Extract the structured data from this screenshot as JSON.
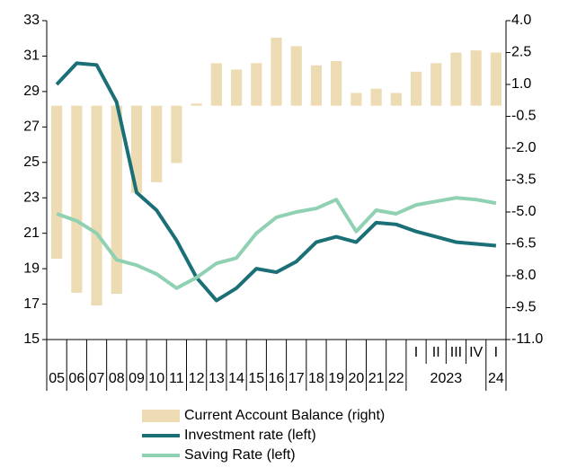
{
  "chart_data": {
    "type": "bar_line_combo",
    "categories": [
      "05",
      "06",
      "07",
      "08",
      "09",
      "10",
      "11",
      "12",
      "13",
      "14",
      "15",
      "16",
      "17",
      "18",
      "19",
      "20",
      "21",
      "22",
      "I",
      "II",
      "III",
      "IV",
      "I"
    ],
    "groups": [
      {
        "label": "2023",
        "start": 18,
        "end": 21
      },
      {
        "label": "24",
        "start": 22,
        "end": 22
      }
    ],
    "series": [
      {
        "name": "Current Account Balance (right)",
        "kind": "bar",
        "axis": "y2",
        "color": "#eddcb3",
        "values": [
          -7.2,
          -8.8,
          -9.4,
          -8.85,
          -4.1,
          -3.6,
          -2.7,
          0.1,
          2.0,
          1.7,
          2.0,
          3.2,
          2.8,
          1.9,
          2.1,
          0.6,
          0.8,
          0.6,
          1.6,
          2.0,
          2.5,
          2.6,
          2.5
        ]
      },
      {
        "name": "Investment rate (left)",
        "kind": "line",
        "color": "#1b6f77",
        "values": [
          29.4,
          30.6,
          30.5,
          28.4,
          23.3,
          22.3,
          20.6,
          18.5,
          17.2,
          17.9,
          19.0,
          18.8,
          19.4,
          20.5,
          20.8,
          20.5,
          21.6,
          21.5,
          21.1,
          20.8,
          20.5,
          20.4,
          20.3
        ]
      },
      {
        "name": "Saving Rate (left)",
        "kind": "line",
        "color": "#8fd1b2",
        "values": [
          22.1,
          21.7,
          21.0,
          19.5,
          19.2,
          18.7,
          17.9,
          18.5,
          19.3,
          19.6,
          21.0,
          21.9,
          22.2,
          22.4,
          22.9,
          21.1,
          22.3,
          22.1,
          22.6,
          22.8,
          23.0,
          22.9,
          22.7
        ]
      }
    ],
    "ylim": [
      15,
      33
    ],
    "yticks": [
      15,
      17,
      19,
      21,
      23,
      25,
      27,
      29,
      31,
      33
    ],
    "y2lim": [
      -11,
      4
    ],
    "y2ticks": [
      {
        "value": -11,
        "label": "-11.0"
      },
      -9.5,
      {
        "value": -8,
        "label": "-8.0"
      },
      -6.5,
      {
        "value": -5,
        "label": "-5.0"
      },
      -3.5,
      {
        "value": -2,
        "label": "-2.0"
      },
      -0.5,
      {
        "value": 1,
        "label": "1.0"
      },
      2.5,
      {
        "value": 4,
        "label": "4.0"
      }
    ],
    "legend": "bottom"
  }
}
